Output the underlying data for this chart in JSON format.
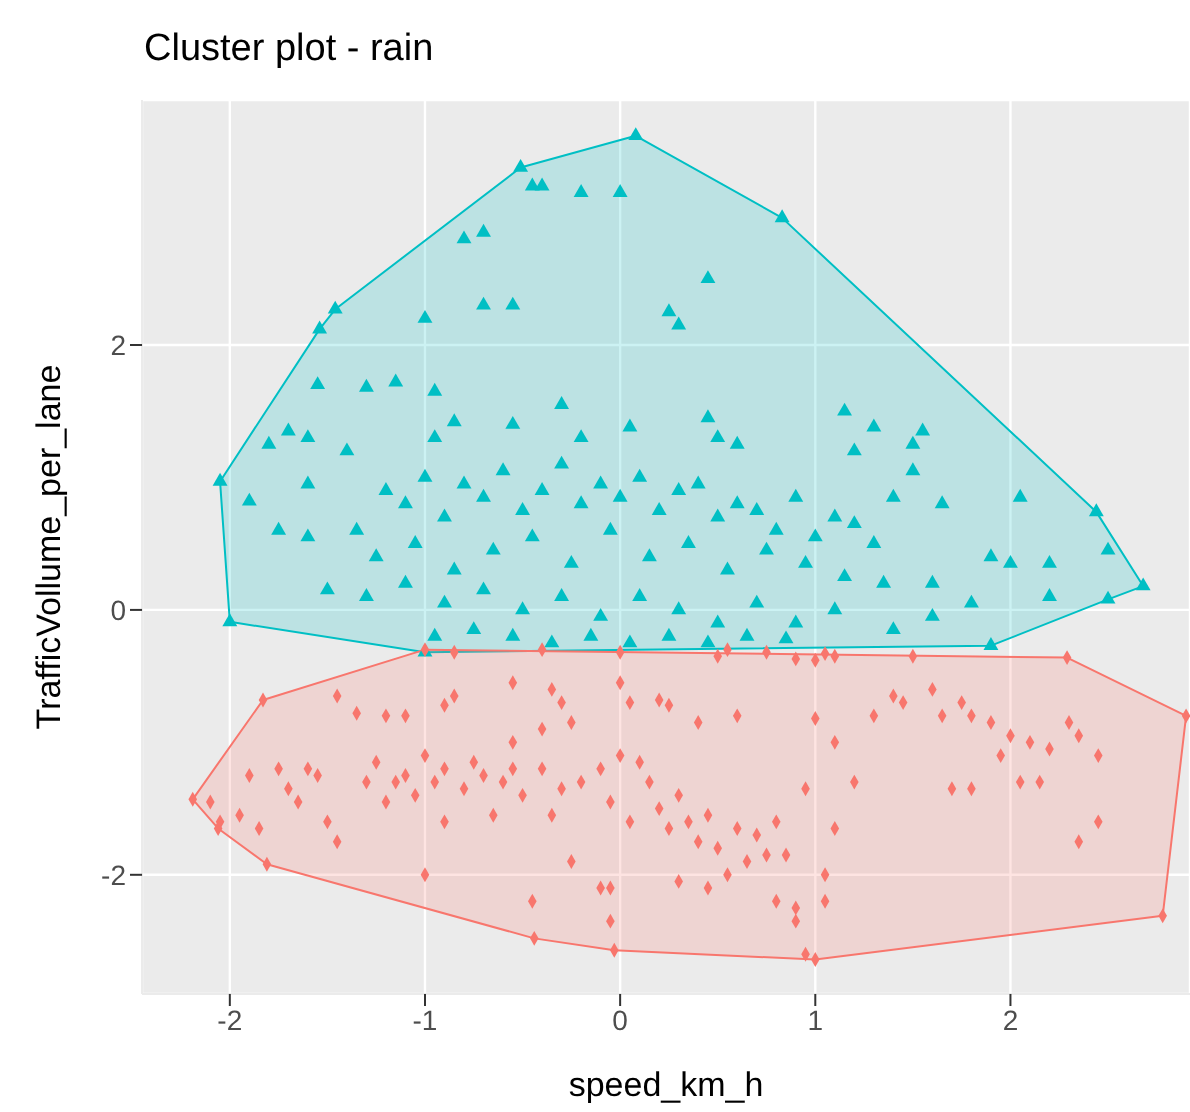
{
  "chart_data": {
    "type": "scatter",
    "title": "Cluster plot - rain",
    "xlabel": "speed_km_h",
    "ylabel": "TrafficVollume_per_lane",
    "xlim": [
      -2.45,
      2.92
    ],
    "ylim": [
      -2.9,
      3.85
    ],
    "xticks": [
      -2,
      -1,
      0,
      1,
      2
    ],
    "yticks": [
      -2,
      0,
      2
    ],
    "grid": true,
    "series": [
      {
        "type": "area",
        "color": "#00bfc4",
        "x": [
          -2.05,
          -2.0,
          -1.0,
          1.9,
          2.5,
          2.68,
          2.44,
          0.83,
          0.08,
          -0.51,
          -1.46,
          -1.54,
          -2.05
        ],
        "values": [
          0.97,
          -0.09,
          -0.32,
          -0.27,
          0.08,
          0.18,
          0.74,
          2.96,
          3.58,
          3.34,
          2.27,
          2.12,
          0.97
        ]
      },
      {
        "type": "area",
        "color": "#f8766d",
        "x": [
          -2.19,
          -1.83,
          -1.0,
          2.29,
          2.9,
          2.78,
          1.0,
          -0.03,
          -0.44,
          -1.81,
          -2.06,
          -2.19
        ],
        "values": [
          -1.43,
          -0.68,
          -0.3,
          -0.36,
          -0.8,
          -2.31,
          -2.64,
          -2.57,
          -2.48,
          -1.92,
          -1.65,
          -1.43
        ]
      },
      {
        "color": "#00bfc4",
        "marker": "triangle",
        "x": [
          -0.51,
          0.08,
          0.83,
          -0.45,
          -0.4,
          -0.2,
          0.0,
          -0.8,
          -0.7,
          0.45,
          -1.46,
          -1.54,
          -1.0,
          -0.7,
          -0.55,
          0.25,
          0.3,
          -1.55,
          -1.3,
          -1.15,
          -0.95,
          -0.3,
          0.45,
          1.15,
          1.3,
          1.55,
          -1.7,
          -1.8,
          -1.6,
          -0.95,
          -0.55,
          -0.85,
          -0.2,
          0.05,
          0.5,
          0.6,
          1.5,
          1.5,
          1.2,
          -1.4,
          -1.6,
          -1.9,
          -1.75,
          -1.6,
          -1.35,
          2.44,
          2.05,
          1.4,
          1.65,
          1.9,
          2.0,
          2.2,
          2.5,
          1.6,
          2.2,
          1.8,
          2.68,
          -2.05,
          -2.0,
          -1.0,
          1.9,
          2.5,
          -1.2,
          -1.1,
          -1.0,
          -0.9,
          -0.8,
          -0.7,
          -0.6,
          -0.5,
          -0.4,
          -0.3,
          -0.2,
          -0.1,
          0.0,
          0.1,
          0.2,
          0.3,
          0.4,
          0.5,
          0.6,
          0.7,
          0.8,
          0.9,
          1.0,
          1.1,
          1.2,
          1.3,
          -1.25,
          -1.05,
          -0.85,
          -0.65,
          -0.45,
          -0.25,
          -0.05,
          0.15,
          0.35,
          0.55,
          0.75,
          0.95,
          1.15,
          1.35,
          -1.5,
          -1.3,
          -1.1,
          -0.9,
          -0.7,
          -0.5,
          -0.3,
          -0.1,
          0.1,
          0.3,
          0.5,
          0.7,
          0.9,
          1.1,
          1.4,
          1.6,
          -0.95,
          -0.75,
          -0.55,
          -0.35,
          -0.15,
          0.05,
          0.25,
          0.45,
          0.65,
          0.85
        ],
        "values": [
          3.34,
          3.58,
          2.96,
          3.2,
          3.2,
          3.15,
          3.15,
          2.8,
          2.85,
          2.5,
          2.27,
          2.12,
          2.2,
          2.3,
          2.3,
          2.25,
          2.15,
          1.7,
          1.68,
          1.72,
          1.65,
          1.55,
          1.45,
          1.5,
          1.38,
          1.35,
          1.35,
          1.25,
          1.3,
          1.3,
          1.4,
          1.42,
          1.3,
          1.38,
          1.3,
          1.25,
          1.25,
          1.05,
          1.2,
          1.2,
          0.95,
          0.82,
          0.6,
          0.55,
          0.6,
          0.74,
          0.85,
          0.85,
          0.8,
          0.4,
          0.35,
          0.35,
          0.45,
          0.2,
          0.1,
          0.05,
          0.18,
          0.97,
          -0.09,
          -0.32,
          -0.27,
          0.08,
          0.9,
          0.8,
          1.0,
          0.7,
          0.95,
          0.85,
          1.05,
          0.75,
          0.9,
          1.1,
          0.8,
          0.95,
          0.85,
          1.0,
          0.75,
          0.9,
          0.95,
          0.7,
          0.8,
          0.75,
          0.6,
          0.85,
          0.55,
          0.7,
          0.65,
          0.5,
          0.4,
          0.5,
          0.3,
          0.45,
          0.55,
          0.35,
          0.6,
          0.4,
          0.5,
          0.3,
          0.45,
          0.35,
          0.25,
          0.2,
          0.15,
          0.1,
          0.2,
          0.05,
          0.15,
          0.0,
          0.1,
          -0.05,
          0.1,
          0.0,
          -0.1,
          0.05,
          -0.1,
          0.0,
          -0.15,
          -0.05,
          -0.2,
          -0.15,
          -0.2,
          -0.25,
          -0.2,
          -0.25,
          -0.2,
          -0.25,
          -0.2,
          -0.22
        ]
      },
      {
        "color": "#f8766d",
        "marker": "diamond",
        "x": [
          -1.0,
          -0.85,
          -0.4,
          0.0,
          0.5,
          0.9,
          1.0,
          1.5,
          2.29,
          0.55,
          0.75,
          1.05,
          1.1,
          -1.45,
          -1.35,
          -1.2,
          -1.1,
          -0.85,
          -0.9,
          -0.55,
          -0.35,
          -0.3,
          -0.25,
          0.0,
          0.05,
          0.2,
          0.25,
          0.4,
          0.6,
          1.0,
          1.1,
          1.3,
          1.4,
          1.45,
          1.6,
          1.65,
          1.75,
          1.8,
          1.9,
          2.0,
          2.1,
          2.3,
          2.35,
          2.45,
          -0.55,
          -0.4,
          -1.6,
          1.95,
          2.2,
          -2.19,
          -2.1,
          -1.9,
          -1.75,
          -1.7,
          -1.65,
          -1.55,
          -1.45,
          -1.5,
          -1.3,
          -1.25,
          -1.2,
          -1.15,
          -1.1,
          -1.05,
          -1.0,
          -0.95,
          -0.9,
          -0.8,
          -0.75,
          -0.7,
          -0.65,
          -0.6,
          -0.55,
          -0.5,
          -0.4,
          -0.35,
          -0.3,
          -0.2,
          -0.1,
          -0.05,
          0.0,
          0.05,
          0.1,
          0.15,
          0.2,
          0.25,
          0.3,
          0.35,
          0.4,
          0.45,
          0.5,
          0.6,
          0.65,
          0.7,
          0.75,
          0.8,
          0.85,
          0.95,
          1.05,
          1.1,
          1.2,
          1.7,
          1.8,
          2.05,
          2.15,
          2.35,
          2.45,
          -1.95,
          -2.05,
          -1.85,
          -1.81,
          -1.0,
          -0.9,
          -0.25,
          -0.1,
          -0.05,
          0.3,
          0.45,
          0.55,
          0.8,
          0.9,
          0.9,
          -0.44,
          -0.45,
          -0.03,
          -0.05,
          0.95,
          1.0,
          2.78,
          2.9,
          -2.06,
          -1.83,
          1.05
        ],
        "values": [
          -0.3,
          -0.32,
          -0.3,
          -0.32,
          -0.35,
          -0.37,
          -0.38,
          -0.35,
          -0.36,
          -0.3,
          -0.32,
          -0.33,
          -0.35,
          -0.65,
          -0.78,
          -0.8,
          -0.8,
          -0.65,
          -0.72,
          -0.55,
          -0.6,
          -0.7,
          -0.85,
          -0.55,
          -0.7,
          -0.68,
          -0.72,
          -0.85,
          -0.8,
          -0.82,
          -1.0,
          -0.8,
          -0.65,
          -0.7,
          -0.6,
          -0.8,
          -0.7,
          -0.8,
          -0.85,
          -0.95,
          -1.0,
          -0.85,
          -0.95,
          -1.1,
          -1.0,
          -0.9,
          -1.2,
          -1.1,
          -1.05,
          -1.43,
          -1.45,
          -1.25,
          -1.2,
          -1.35,
          -1.45,
          -1.25,
          -1.75,
          -1.6,
          -1.3,
          -1.15,
          -1.45,
          -1.3,
          -1.25,
          -1.4,
          -1.1,
          -1.3,
          -1.2,
          -1.35,
          -1.15,
          -1.25,
          -1.55,
          -1.3,
          -1.2,
          -1.4,
          -1.2,
          -1.55,
          -1.35,
          -1.3,
          -1.2,
          -1.45,
          -1.1,
          -1.6,
          -1.15,
          -1.3,
          -1.5,
          -1.65,
          -1.4,
          -1.6,
          -1.75,
          -1.55,
          -1.8,
          -1.65,
          -1.9,
          -1.7,
          -1.85,
          -1.6,
          -1.85,
          -1.35,
          -2.0,
          -1.65,
          -1.3,
          -1.35,
          -1.35,
          -1.3,
          -1.3,
          -1.75,
          -1.6,
          -1.55,
          -1.6,
          -1.65,
          -1.92,
          -2.0,
          -1.6,
          -1.9,
          -2.1,
          -2.1,
          -2.05,
          -2.1,
          -2.0,
          -2.2,
          -2.25,
          -2.35,
          -2.48,
          -2.2,
          -2.57,
          -2.35,
          -2.6,
          -2.64,
          -2.31,
          -0.8,
          -1.65,
          -0.68,
          -2.2
        ]
      }
    ]
  }
}
